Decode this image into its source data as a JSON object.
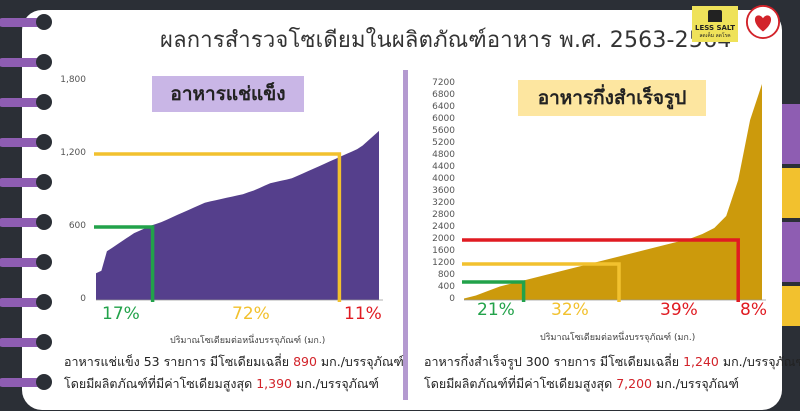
{
  "title": "ผลการสำรวจโซเดียมในผลิตภัณฑ์อาหาร พ.ศ. 2563-2564",
  "logos": {
    "less_salt_text": "LESS SALT",
    "less_salt_sub": "ลดเค็ม ลดโรค"
  },
  "colors": {
    "frozen_fill": "#553f8c",
    "instant_fill": "#cc9a0c",
    "green": "#22a24a",
    "yellow": "#f2c12e",
    "red": "#e01b22",
    "frozen_label_bg": "#c9b6e6",
    "instant_label_bg": "#fde6a0",
    "ring_purple": "#8e5db2"
  },
  "chart_data": [
    {
      "type": "area",
      "title": "อาหารแช่แข็ง",
      "xlabel": "ปริมาณโซเดียมต่อหนึ่งบรรจุภัณฑ์ (มก.)",
      "ylabel": "",
      "ylim": [
        0,
        1800
      ],
      "y_ticks": [
        "0",
        "600",
        "1,200",
        "1,800"
      ],
      "y_tick_values": [
        0,
        600,
        1200,
        1800
      ],
      "grid": false,
      "series": [
        {
          "values": [
            220,
            240,
            400,
            430,
            460,
            490,
            520,
            550,
            570,
            590,
            610,
            625,
            640,
            660,
            680,
            700,
            720,
            740,
            760,
            780,
            800,
            810,
            820,
            830,
            840,
            850,
            860,
            870,
            885,
            900,
            920,
            940,
            960,
            970,
            980,
            990,
            1000,
            1020,
            1040,
            1060,
            1080,
            1100,
            1120,
            1140,
            1160,
            1180,
            1200,
            1220,
            1240,
            1270,
            1310,
            1350,
            1390
          ]
        }
      ],
      "thresholds": [
        {
          "value": 600,
          "color": "green"
        },
        {
          "value": 1200,
          "color": "yellow"
        }
      ],
      "percentages": [
        {
          "label": "17%",
          "color": "green"
        },
        {
          "label": "72%",
          "color": "yellow"
        },
        {
          "label": "11%",
          "color": "red"
        }
      ],
      "summary_line1": [
        "อาหารแช่แข็ง 53 รายการ มีโซเดียมเฉลี่ย ",
        "890",
        " มก./บรรจุภัณฑ์"
      ],
      "summary_line2": [
        "โดยมีผลิตภัณฑ์ที่มีค่าโซเดียมสูงสุด ",
        "1,390",
        " มก./บรรจุภัณฑ์"
      ]
    },
    {
      "type": "area",
      "title": "อาหารกึ่งสำเร็จรูป",
      "xlabel": "ปริมาณโซเดียมต่อหนึ่งบรรจุภัณฑ์ (มก.)",
      "ylabel": "",
      "ylim": [
        0,
        7200
      ],
      "y_ticks": [
        "0",
        "400",
        "800",
        "1200",
        "1600",
        "2000",
        "2400",
        "2800",
        "3200",
        "3600",
        "4000",
        "4400",
        "4800",
        "5200",
        "5600",
        "6000",
        "6400",
        "6800",
        "7200"
      ],
      "y_tick_values": [
        0,
        400,
        800,
        1200,
        1600,
        2000,
        2400,
        2800,
        3200,
        3600,
        4000,
        4400,
        4800,
        5200,
        5600,
        6000,
        6400,
        6800,
        7200
      ],
      "grid": false,
      "series": [
        {
          "values": [
            50,
            150,
            300,
            450,
            550,
            650,
            750,
            850,
            950,
            1050,
            1150,
            1250,
            1350,
            1450,
            1550,
            1650,
            1750,
            1850,
            1950,
            2050,
            2200,
            2400,
            2800,
            4000,
            6000,
            7200
          ]
        }
      ],
      "thresholds": [
        {
          "value": 600,
          "color": "green"
        },
        {
          "value": 1200,
          "color": "yellow"
        },
        {
          "value": 2000,
          "color": "red"
        }
      ],
      "percentages": [
        {
          "label": "21%",
          "color": "green"
        },
        {
          "label": "32%",
          "color": "yellow"
        },
        {
          "label": "39%",
          "color": "red"
        },
        {
          "label": "8%",
          "color": "red"
        }
      ],
      "summary_line1": [
        "อาหารกึ่งสำเร็จรูป 300 รายการ มีโซเดียมเฉลี่ย ",
        "1,240",
        " มก./บรรจุภัณฑ์"
      ],
      "summary_line2": [
        "โดยมีผลิตภัณฑ์ที่มีค่าโซเดียมสูงสุด ",
        "7,200",
        " มก./บรรจุภัณฑ์"
      ]
    }
  ]
}
